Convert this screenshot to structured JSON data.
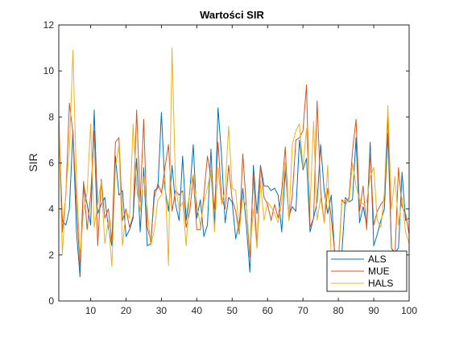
{
  "chart_data": {
    "type": "line",
    "title": "Wartości SIR",
    "xlabel": "",
    "ylabel": "SIR",
    "xlim": [
      1,
      100
    ],
    "ylim": [
      0,
      12
    ],
    "xticks": [
      10,
      20,
      30,
      40,
      50,
      60,
      70,
      80,
      90,
      100
    ],
    "yticks": [
      0,
      2,
      4,
      6,
      8,
      10,
      12
    ],
    "grid": false,
    "legend_position": "bottom-right",
    "x": [
      1,
      2,
      3,
      4,
      5,
      6,
      7,
      8,
      9,
      10,
      11,
      12,
      13,
      14,
      15,
      16,
      17,
      18,
      19,
      20,
      21,
      22,
      23,
      24,
      25,
      26,
      27,
      28,
      29,
      30,
      31,
      32,
      33,
      34,
      35,
      36,
      37,
      38,
      39,
      40,
      41,
      42,
      43,
      44,
      45,
      46,
      47,
      48,
      49,
      50,
      51,
      52,
      53,
      54,
      55,
      56,
      57,
      58,
      59,
      60,
      61,
      62,
      63,
      64,
      65,
      66,
      67,
      68,
      69,
      70,
      71,
      72,
      73,
      74,
      75,
      76,
      77,
      78,
      79,
      80,
      81,
      82,
      83,
      84,
      85,
      86,
      87,
      88,
      89,
      90,
      91,
      92,
      93,
      94,
      95,
      96,
      97,
      98,
      99,
      100
    ],
    "series": [
      {
        "name": "ALS",
        "color": "#0072BD",
        "values": [
          7.6,
          3.5,
          3.3,
          4.0,
          7.4,
          3.0,
          1.05,
          5.1,
          4.2,
          3.3,
          8.3,
          3.8,
          4.2,
          4.5,
          3.2,
          2.4,
          6.3,
          4.6,
          4.8,
          2.8,
          3.1,
          3.6,
          6.2,
          3.0,
          5.8,
          2.4,
          2.5,
          4.8,
          4.9,
          8.2,
          4.9,
          3.9,
          5.9,
          4.2,
          3.5,
          6.3,
          3.5,
          4.7,
          6.8,
          3.6,
          4.4,
          2.8,
          3.3,
          6.6,
          3.2,
          8.4,
          6.3,
          3.4,
          4.5,
          4.3,
          2.7,
          3.4,
          4.9,
          3.3,
          1.25,
          5.9,
          3.8,
          5.9,
          5.0,
          5.0,
          4.8,
          4.9,
          4.6,
          3.0,
          5.7,
          3.7,
          4.1,
          3.9,
          7.0,
          5.7,
          6.2,
          3.0,
          3.6,
          4.3,
          6.8,
          4.8,
          3.8,
          4.6,
          1.9,
          1.6,
          2.1,
          4.5,
          4.3,
          4.4,
          7.1,
          3.4,
          4.1,
          3.3,
          6.9,
          2.4,
          2.9,
          3.5,
          4.0,
          7.3,
          2.3,
          2.1,
          2.3,
          5.6,
          3.5,
          3.6
        ]
      },
      {
        "name": "MUE",
        "color": "#D95319",
        "values": [
          8.1,
          3.0,
          4.6,
          8.6,
          7.3,
          4.2,
          1.4,
          5.2,
          3.1,
          4.6,
          7.4,
          2.4,
          5.3,
          3.6,
          4.0,
          2.6,
          6.9,
          7.1,
          3.5,
          4.0,
          3.2,
          3.7,
          8.3,
          4.3,
          7.9,
          3.2,
          2.6,
          4.5,
          5.1,
          4.7,
          5.8,
          6.8,
          3.9,
          4.8,
          4.6,
          4.8,
          3.2,
          3.9,
          5.4,
          3.1,
          3.1,
          4.6,
          6.3,
          5.4,
          4.0,
          6.9,
          4.5,
          4.0,
          5.9,
          4.4,
          3.9,
          2.9,
          6.4,
          4.1,
          1.9,
          5.5,
          2.3,
          5.9,
          4.5,
          4.2,
          3.5,
          4.2,
          3.6,
          4.8,
          6.7,
          3.5,
          4.6,
          7.0,
          7.1,
          7.4,
          9.4,
          3.2,
          3.6,
          8.7,
          4.8,
          3.4,
          4.9,
          3.6,
          2.1,
          1.7,
          4.4,
          4.2,
          4.5,
          6.5,
          7.9,
          3.9,
          5.0,
          3.1,
          6.5,
          3.3,
          3.9,
          4.2,
          4.4,
          8.1,
          2.3,
          2.0,
          5.8,
          4.1,
          3.8,
          2.9
        ]
      },
      {
        "name": "HALS",
        "color": "#EDB120",
        "values": [
          7.8,
          2.0,
          4.8,
          6.6,
          10.9,
          5.2,
          1.9,
          3.9,
          4.7,
          7.7,
          3.2,
          4.2,
          5.2,
          2.5,
          3.5,
          1.5,
          5.8,
          6.8,
          2.4,
          3.9,
          3.6,
          7.7,
          4.9,
          3.9,
          5.4,
          4.0,
          2.4,
          3.1,
          4.4,
          4.6,
          5.4,
          1.55,
          11.0,
          5.0,
          4.0,
          4.3,
          2.4,
          4.9,
          5.5,
          4.2,
          3.3,
          4.3,
          4.9,
          5.7,
          3.0,
          5.8,
          4.2,
          4.8,
          7.6,
          4.9,
          4.8,
          3.0,
          4.5,
          4.1,
          2.2,
          4.0,
          2.3,
          5.2,
          3.5,
          4.3,
          4.1,
          3.8,
          3.4,
          4.3,
          6.0,
          3.5,
          6.8,
          7.4,
          7.7,
          5.8,
          7.5,
          4.1,
          7.8,
          3.5,
          4.5,
          3.4,
          5.9,
          1.9,
          2.1,
          1.5,
          4.3,
          4.4,
          4.3,
          6.0,
          5.0,
          4.4,
          4.2,
          4.3,
          5.4,
          5.8,
          3.5,
          3.2,
          4.7,
          8.5,
          4.0,
          5.4,
          3.3,
          4.5,
          3.0,
          2.5
        ]
      }
    ]
  }
}
